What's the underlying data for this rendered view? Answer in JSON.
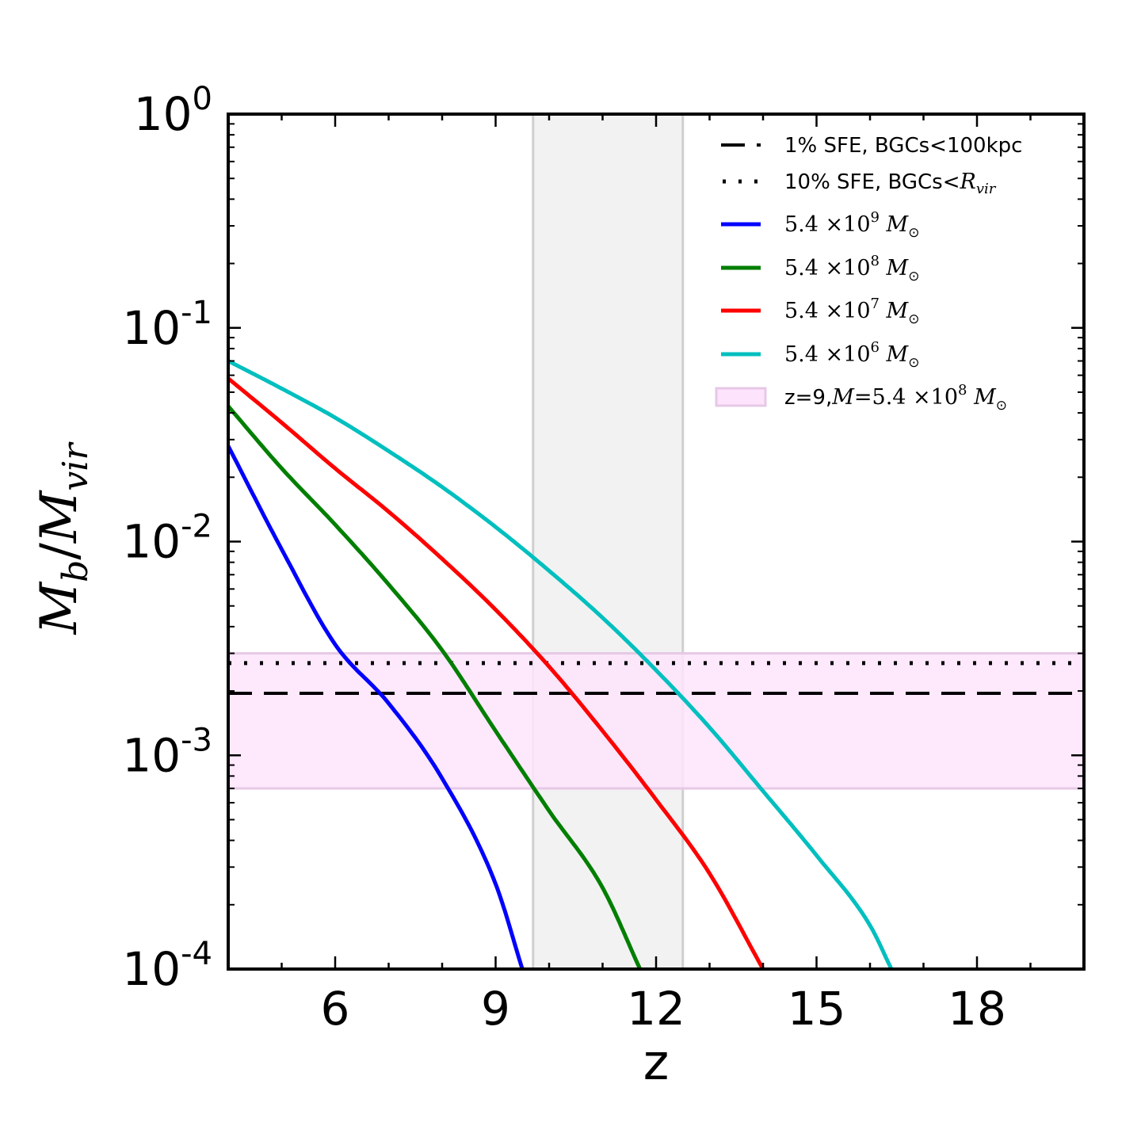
{
  "chart_data": {
    "type": "line",
    "xlabel": "z",
    "ylabel_main": "M",
    "ylabel_sub1": "b",
    "ylabel_slash": "/",
    "ylabel_sub2": "vir",
    "xlim": [
      4,
      20
    ],
    "ylim": [
      0.0001,
      1
    ],
    "yscale": "log",
    "x_ticks": [
      {
        "value": 6,
        "label": "6"
      },
      {
        "value": 9,
        "label": "9"
      },
      {
        "value": 12,
        "label": "12"
      },
      {
        "value": 15,
        "label": "15"
      },
      {
        "value": 18,
        "label": "18"
      }
    ],
    "y_ticks": [
      {
        "exp": 0,
        "base": "10",
        "sup": "0"
      },
      {
        "exp": -1,
        "base": "10",
        "sup": "-1"
      },
      {
        "exp": -2,
        "base": "10",
        "sup": "-2"
      },
      {
        "exp": -3,
        "base": "10",
        "sup": "-3"
      },
      {
        "exp": -4,
        "base": "10",
        "sup": "-4"
      }
    ],
    "gray_band": {
      "x_range": [
        9.7,
        12.5
      ],
      "color": "#d9d9d9"
    },
    "pink_band": {
      "y_range": [
        0.0007,
        0.003
      ],
      "color": "#fde4fc"
    },
    "hlines": [
      {
        "name": "1% SFE, BGCs<100kpc",
        "y": 0.00195,
        "style": "dashed",
        "color": "#000000"
      },
      {
        "name": "10% SFE, BGCs<Rvir",
        "y": 0.0027,
        "style": "dotted",
        "color": "#000000"
      }
    ],
    "series": [
      {
        "name": "5.4x10^9 Msun",
        "color": "#0000ff",
        "points": [
          [
            4,
            0.028
          ],
          [
            5,
            0.0092
          ],
          [
            6,
            0.0033
          ],
          [
            7,
            0.00175
          ],
          [
            8,
            0.00078
          ],
          [
            9,
            0.00025
          ],
          [
            9.5,
            0.0001
          ]
        ]
      },
      {
        "name": "5.4x10^8 Msun",
        "color": "#007f00",
        "points": [
          [
            4,
            0.043
          ],
          [
            5,
            0.022
          ],
          [
            6,
            0.012
          ],
          [
            7,
            0.0063
          ],
          [
            8,
            0.0031
          ],
          [
            9,
            0.0013
          ],
          [
            10,
            0.00055
          ],
          [
            11,
            0.00024
          ],
          [
            11.7,
            0.0001
          ]
        ]
      },
      {
        "name": "5.4x10^7 Msun",
        "color": "#ff0000",
        "points": [
          [
            4,
            0.058
          ],
          [
            5,
            0.036
          ],
          [
            6,
            0.022
          ],
          [
            7,
            0.0138
          ],
          [
            8,
            0.0083
          ],
          [
            9,
            0.0048
          ],
          [
            10,
            0.0026
          ],
          [
            11,
            0.0013
          ],
          [
            12,
            0.00062
          ],
          [
            13,
            0.00028
          ],
          [
            14,
            0.0001
          ]
        ]
      },
      {
        "name": "5.4x10^6 Msun",
        "color": "#00bfbf",
        "points": [
          [
            4,
            0.07
          ],
          [
            5,
            0.052
          ],
          [
            6,
            0.038
          ],
          [
            7,
            0.0265
          ],
          [
            8,
            0.018
          ],
          [
            9,
            0.0117
          ],
          [
            10,
            0.0073
          ],
          [
            11,
            0.0044
          ],
          [
            12,
            0.0025
          ],
          [
            13,
            0.00135
          ],
          [
            14,
            0.00068
          ],
          [
            15,
            0.00034
          ],
          [
            16,
            0.00016
          ],
          [
            16.4,
            0.0001
          ]
        ]
      }
    ],
    "legend": {
      "position": "top-right",
      "entries": [
        {
          "kind": "dashed",
          "text": "1% SFE, BGCs<100kpc"
        },
        {
          "kind": "dotted",
          "text_plain": "10% SFE, BGCs<",
          "text_math": "R",
          "text_sub": "vir"
        },
        {
          "kind": "line",
          "color": "#0000ff",
          "coef": "5.4",
          "times": "×10",
          "exp": "9",
          "unit": "M",
          "unit_sub": "⊙"
        },
        {
          "kind": "line",
          "color": "#007f00",
          "coef": "5.4",
          "times": "×10",
          "exp": "8",
          "unit": "M",
          "unit_sub": "⊙"
        },
        {
          "kind": "line",
          "color": "#ff0000",
          "coef": "5.4",
          "times": "×10",
          "exp": "7",
          "unit": "M",
          "unit_sub": "⊙"
        },
        {
          "kind": "line",
          "color": "#00bfbf",
          "coef": "5.4",
          "times": "×10",
          "exp": "6",
          "unit": "M",
          "unit_sub": "⊙"
        },
        {
          "kind": "patch",
          "color": "#fde4fc",
          "text_plain": "z=9,",
          "text_math": "M",
          "eq": "=5.4 ×10",
          "exp": "8",
          "unit": "M",
          "unit_sub": "⊙"
        }
      ]
    }
  }
}
